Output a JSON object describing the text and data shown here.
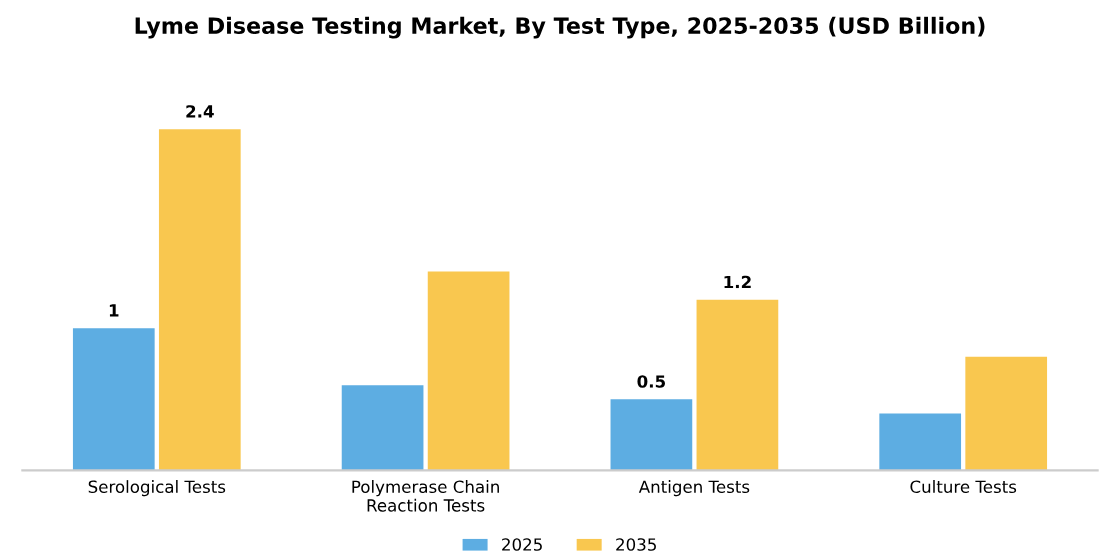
{
  "chart_data": {
    "type": "bar",
    "title": "Lyme Disease Testing Market, By Test Type, 2025-2035 (USD Billion)",
    "categories": [
      "Serological Tests",
      "Polymerase Chain\nReaction Tests",
      "Antigen Tests",
      "Culture Tests"
    ],
    "series": [
      {
        "name": "2025",
        "color": "#5dade2",
        "values": [
          1.0,
          0.6,
          0.5,
          0.4
        ],
        "value_labels": [
          "1",
          null,
          "0.5",
          null
        ]
      },
      {
        "name": "2035",
        "color": "#f9c74f",
        "values": [
          2.4,
          1.4,
          1.2,
          0.8
        ],
        "value_labels": [
          "2.4",
          null,
          "1.2",
          null
        ]
      }
    ],
    "legend": "bottom",
    "grid": false,
    "tick_labels": "x"
  }
}
